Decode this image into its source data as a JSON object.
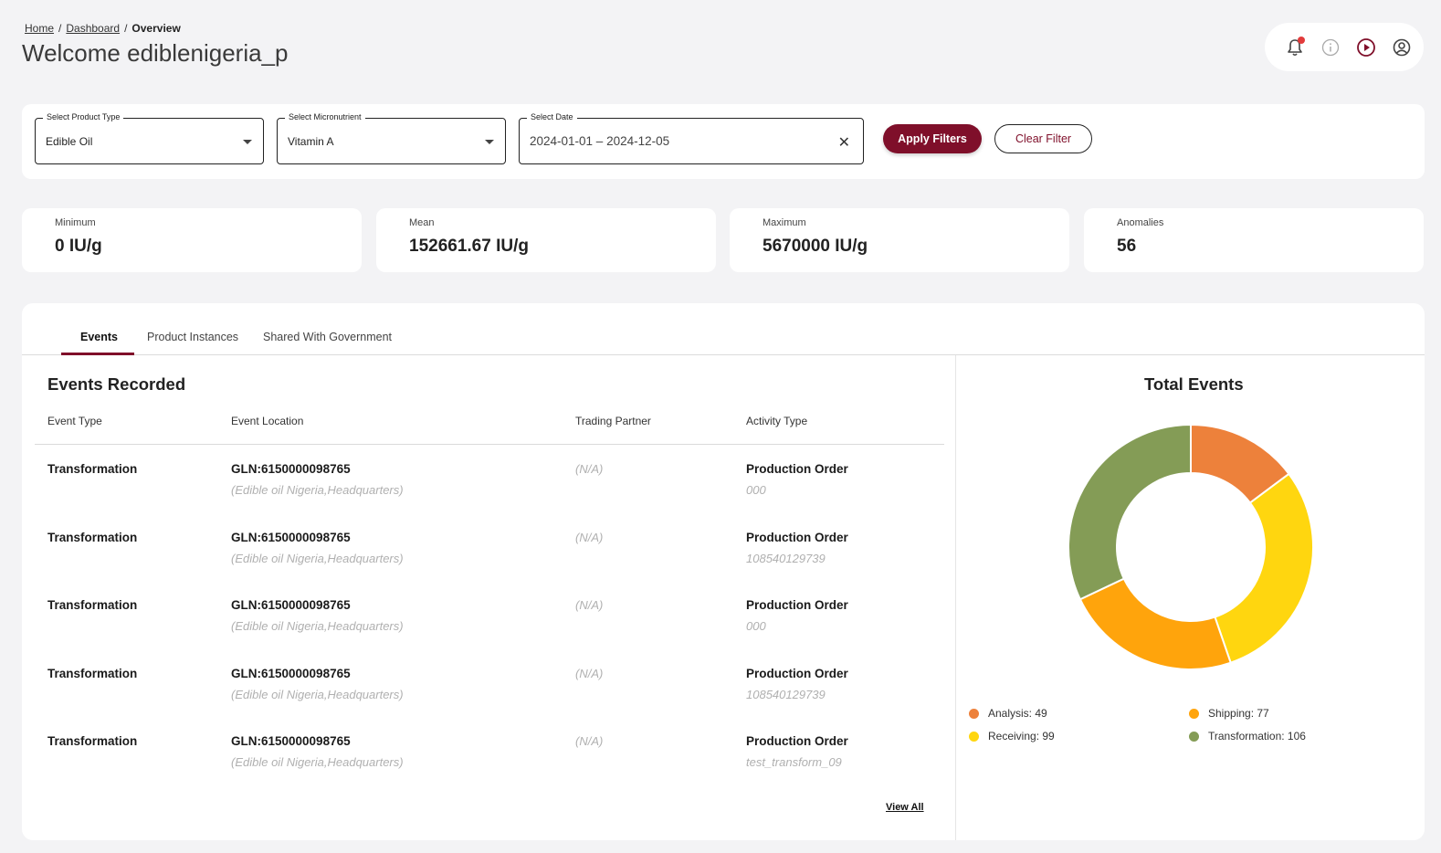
{
  "breadcrumb": {
    "home": "Home",
    "dashboard": "Dashboard",
    "sep": "/",
    "current": "Overview"
  },
  "header": {
    "title": "Welcome ediblenigeria_p"
  },
  "filters": {
    "product_type": {
      "label": "Select Product Type",
      "value": "Edible Oil"
    },
    "micronutrient": {
      "label": "Select Micronutrient",
      "value": "Vitamin A"
    },
    "date": {
      "label": "Select Date",
      "value": "2024-01-01 – 2024-12-05"
    },
    "apply_label": "Apply Filters",
    "clear_label": "Clear Filter"
  },
  "stats": [
    {
      "label": "Minimum",
      "value": "0 IU/g"
    },
    {
      "label": "Mean",
      "value": "152661.67 IU/g"
    },
    {
      "label": "Maximum",
      "value": "5670000 IU/g"
    },
    {
      "label": "Anomalies",
      "value": "56"
    }
  ],
  "tabs": [
    {
      "label": "Events",
      "active": true
    },
    {
      "label": "Product Instances",
      "active": false
    },
    {
      "label": "Shared With Government",
      "active": false
    }
  ],
  "events": {
    "title": "Events Recorded",
    "columns": [
      "Event Type",
      "Event Location",
      "Trading Partner",
      "Activity Type"
    ],
    "rows": [
      {
        "type": "Transformation",
        "gln": "GLN:6150000098765",
        "location": "(Edible oil Nigeria,Headquarters)",
        "partner": "(N/A)",
        "activity": "Production Order",
        "activity_id": "000"
      },
      {
        "type": "Transformation",
        "gln": "GLN:6150000098765",
        "location": "(Edible oil Nigeria,Headquarters)",
        "partner": "(N/A)",
        "activity": "Production Order",
        "activity_id": "108540129739"
      },
      {
        "type": "Transformation",
        "gln": "GLN:6150000098765",
        "location": "(Edible oil Nigeria,Headquarters)",
        "partner": "(N/A)",
        "activity": "Production Order",
        "activity_id": "000"
      },
      {
        "type": "Transformation",
        "gln": "GLN:6150000098765",
        "location": "(Edible oil Nigeria,Headquarters)",
        "partner": "(N/A)",
        "activity": "Production Order",
        "activity_id": "108540129739"
      },
      {
        "type": "Transformation",
        "gln": "GLN:6150000098765",
        "location": "(Edible oil Nigeria,Headquarters)",
        "partner": "(N/A)",
        "activity": "Production Order",
        "activity_id": "test_transform_09"
      }
    ],
    "view_all": "View All"
  },
  "chart": {
    "title": "Total Events",
    "legend": [
      {
        "label": "Analysis: 49",
        "color": "#ed813b"
      },
      {
        "label": "Shipping: 77",
        "color": "#ffa40c"
      },
      {
        "label": "Receiving: 99",
        "color": "#ffd60f"
      },
      {
        "label": "Transformation: 106",
        "color": "#849c56"
      }
    ]
  },
  "chart_data": {
    "type": "pie",
    "title": "Total Events",
    "categories": [
      "Analysis",
      "Receiving",
      "Shipping",
      "Transformation"
    ],
    "values": [
      49,
      99,
      77,
      106
    ],
    "colors": [
      "#ed813b",
      "#ffd60f",
      "#ffa40c",
      "#849c56"
    ],
    "legend_position": "bottom"
  },
  "icons": {
    "notification": "bell-icon",
    "info": "info-icon",
    "play": "play-circle-icon",
    "user": "user-circle-icon"
  },
  "colors": {
    "accent": "#7f0f2a",
    "notification_dot": "#e23b3b"
  }
}
